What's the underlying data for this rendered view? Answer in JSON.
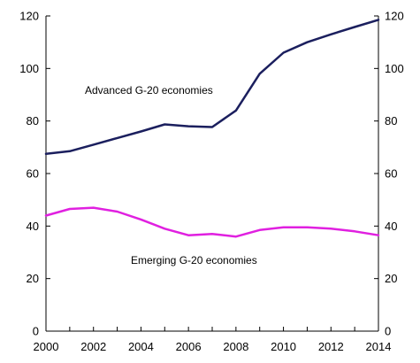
{
  "chart_data": {
    "type": "line",
    "title": "",
    "xlabel": "",
    "ylabel": "",
    "x": [
      2000,
      2001,
      2002,
      2003,
      2004,
      2005,
      2006,
      2007,
      2008,
      2009,
      2010,
      2011,
      2012,
      2013,
      2014
    ],
    "xlim": [
      2000,
      2014
    ],
    "ylim": [
      0,
      120
    ],
    "x_ticks": [
      "2000",
      "2002",
      "2004",
      "2006",
      "2008",
      "2010",
      "2012",
      "2014"
    ],
    "y_ticks": [
      "0",
      "20",
      "40",
      "60",
      "80",
      "100",
      "120"
    ],
    "y_ticks_right": [
      "0",
      "20",
      "40",
      "60",
      "80",
      "100",
      "120"
    ],
    "grid": false,
    "legend": "none",
    "series": [
      {
        "name": "Advanced G-20 economies",
        "color": "#1b1f5e",
        "values": [
          67.5,
          68.5,
          71,
          73.5,
          76,
          78.7,
          78,
          77.7,
          84,
          98,
          106,
          110,
          113,
          115.8,
          118.5
        ]
      },
      {
        "name": "Emerging G-20 economies",
        "color": "#e020e0",
        "values": [
          44,
          46.5,
          47,
          45.5,
          42.5,
          39,
          36.5,
          37,
          36,
          38.5,
          39.5,
          39.5,
          39,
          38,
          36.5
        ]
      }
    ],
    "annotations": [
      {
        "text": "Advanced G-20 economies",
        "series": 0
      },
      {
        "text": "Emerging G-20 economies",
        "series": 1
      }
    ]
  }
}
